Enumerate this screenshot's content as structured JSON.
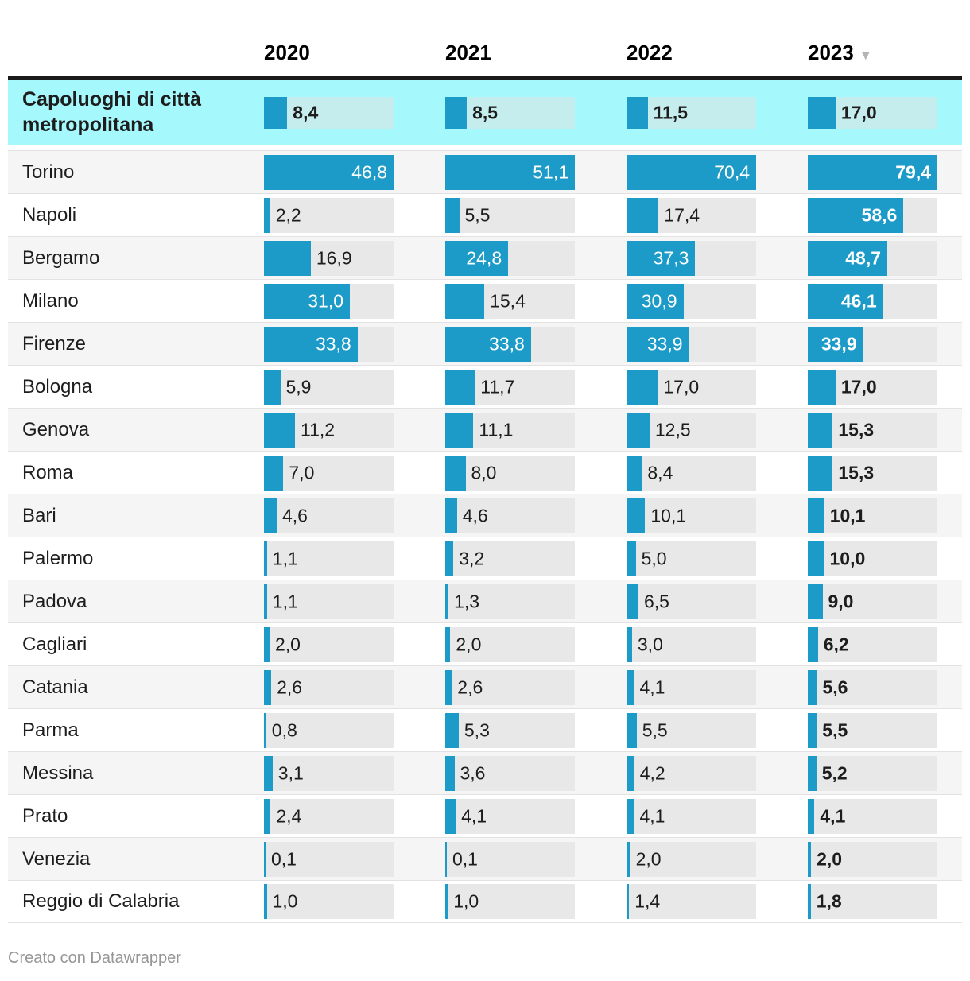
{
  "chart_data": {
    "type": "bar",
    "layout": "table-with-bar-columns",
    "columns": [
      "2020",
      "2021",
      "2022",
      "2023"
    ],
    "sorted_by": "2023",
    "sort_direction": "desc",
    "bar_track_max_per_column": [
      46.8,
      51.1,
      70.4,
      79.4
    ],
    "rows": [
      {
        "label": "Capoluoghi di città metropolitana",
        "highlight": true,
        "values": [
          "8,4",
          "8,5",
          "11,5",
          "17,0"
        ]
      },
      {
        "label": "Torino",
        "highlight": false,
        "values": [
          "46,8",
          "51,1",
          "70,4",
          "79,4"
        ]
      },
      {
        "label": "Napoli",
        "highlight": false,
        "values": [
          "2,2",
          "5,5",
          "17,4",
          "58,6"
        ]
      },
      {
        "label": "Bergamo",
        "highlight": false,
        "values": [
          "16,9",
          "24,8",
          "37,3",
          "48,7"
        ]
      },
      {
        "label": "Milano",
        "highlight": false,
        "values": [
          "31,0",
          "15,4",
          "30,9",
          "46,1"
        ]
      },
      {
        "label": "Firenze",
        "highlight": false,
        "values": [
          "33,8",
          "33,8",
          "33,9",
          "33,9"
        ]
      },
      {
        "label": "Bologna",
        "highlight": false,
        "values": [
          "5,9",
          "11,7",
          "17,0",
          "17,0"
        ]
      },
      {
        "label": "Genova",
        "highlight": false,
        "values": [
          "11,2",
          "11,1",
          "12,5",
          "15,3"
        ]
      },
      {
        "label": "Roma",
        "highlight": false,
        "values": [
          "7,0",
          "8,0",
          "8,4",
          "15,3"
        ]
      },
      {
        "label": "Bari",
        "highlight": false,
        "values": [
          "4,6",
          "4,6",
          "10,1",
          "10,1"
        ]
      },
      {
        "label": "Palermo",
        "highlight": false,
        "values": [
          "1,1",
          "3,2",
          "5,0",
          "10,0"
        ]
      },
      {
        "label": "Padova",
        "highlight": false,
        "values": [
          "1,1",
          "1,3",
          "6,5",
          "9,0"
        ]
      },
      {
        "label": "Cagliari",
        "highlight": false,
        "values": [
          "2,0",
          "2,0",
          "3,0",
          "6,2"
        ]
      },
      {
        "label": "Catania",
        "highlight": false,
        "values": [
          "2,6",
          "2,6",
          "4,1",
          "5,6"
        ]
      },
      {
        "label": "Parma",
        "highlight": false,
        "values": [
          "0,8",
          "5,3",
          "5,5",
          "5,5"
        ]
      },
      {
        "label": "Messina",
        "highlight": false,
        "values": [
          "3,1",
          "3,6",
          "4,2",
          "5,2"
        ]
      },
      {
        "label": "Prato",
        "highlight": false,
        "values": [
          "2,4",
          "4,1",
          "4,1",
          "4,1"
        ]
      },
      {
        "label": "Venezia",
        "highlight": false,
        "values": [
          "0,1",
          "0,1",
          "2,0",
          "2,0"
        ]
      },
      {
        "label": "Reggio di Calabria",
        "highlight": false,
        "values": [
          "1,0",
          "1,0",
          "1,4",
          "1,8"
        ]
      }
    ]
  },
  "icons": {
    "sort_desc": "▼"
  },
  "footer": {
    "credit": "Creato con Datawrapper"
  },
  "colors": {
    "bar": "#1c9bc8",
    "track": "#e8e8e8",
    "hl_bg": "#a5f9fd",
    "hl_track": "#c6edee",
    "row_alt": "#f5f5f5",
    "header_border": "#1a1a1a",
    "separator": "#e2e2e2",
    "text": "#1d1d1d",
    "label_inside": "#ffffff",
    "footer_text": "#969696",
    "year_text": "#000000",
    "sort_icon": "#b5b5b5"
  }
}
